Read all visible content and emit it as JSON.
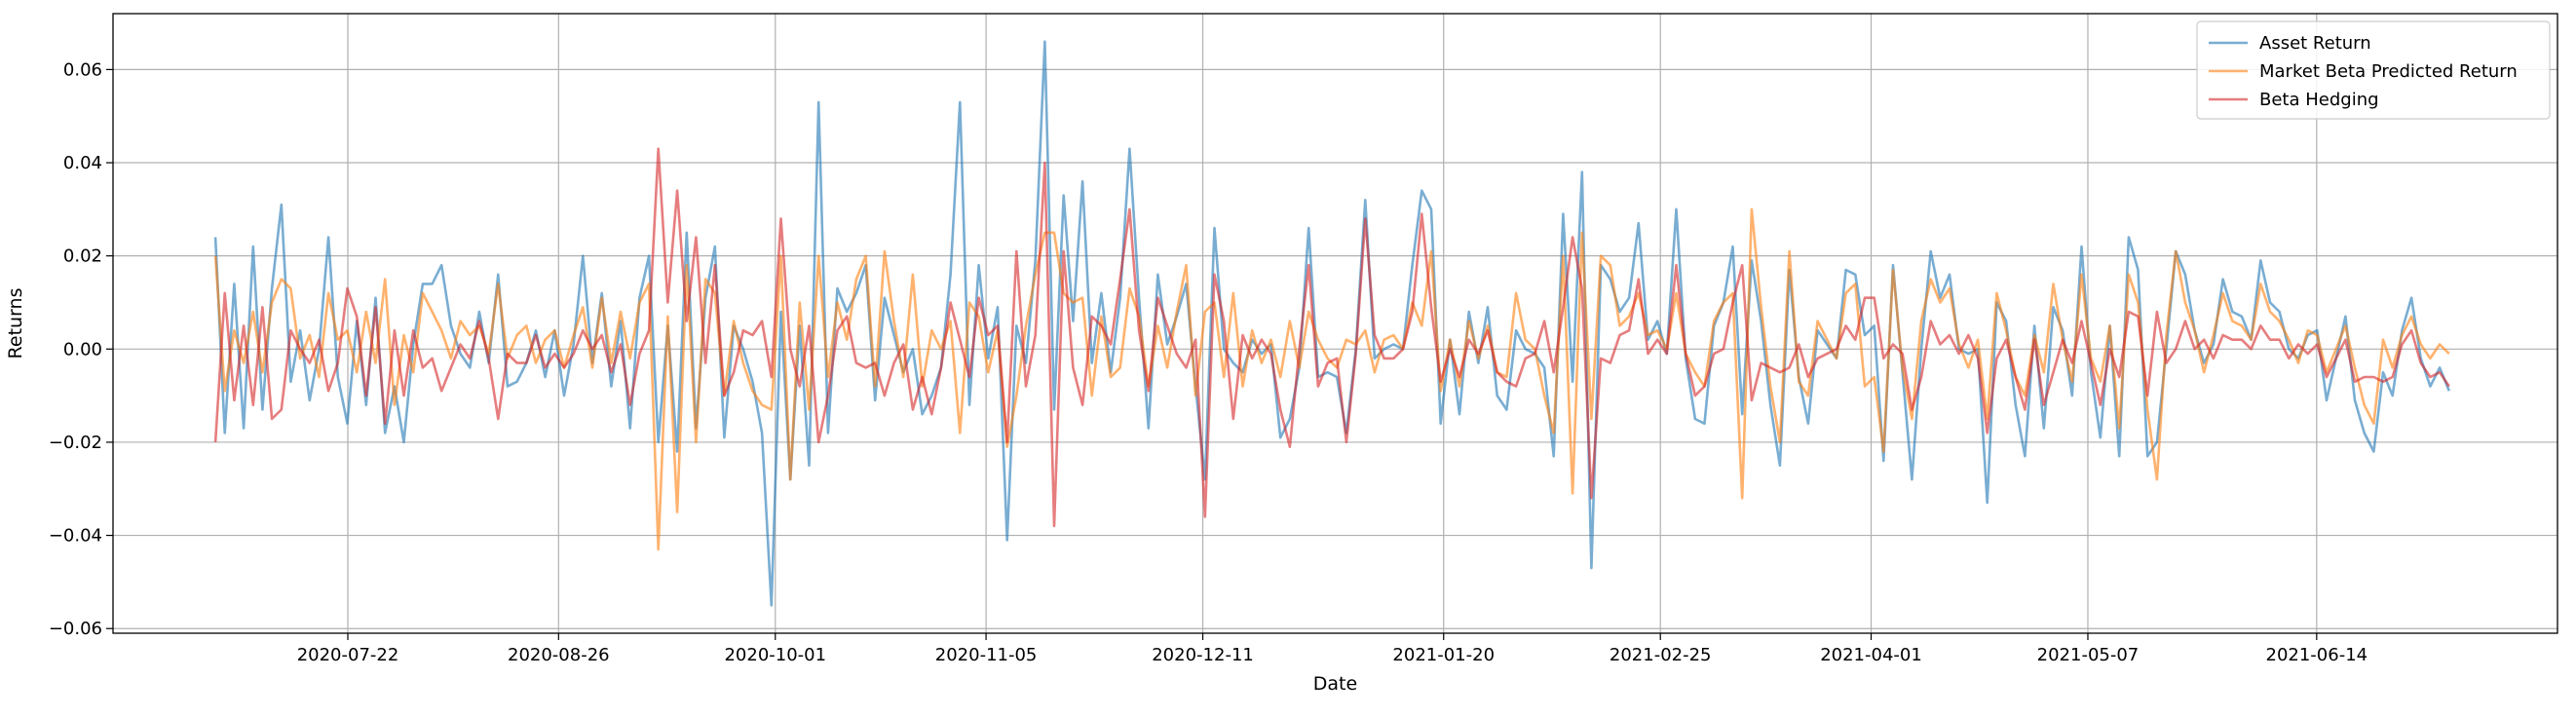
{
  "chart_data": {
    "type": "line",
    "title": "",
    "xlabel": "Date",
    "ylabel": "Returns",
    "ylim": [
      -0.061,
      0.072
    ],
    "xlim": [
      "2020-06-13",
      "2021-07-24"
    ],
    "grid": true,
    "legend_position": "top-right",
    "x_start": "2020-06-30",
    "x_end": "2021-07-06",
    "x_ticks": [
      "2020-07-22",
      "2020-08-26",
      "2020-10-01",
      "2020-11-05",
      "2020-12-11",
      "2021-01-20",
      "2021-02-25",
      "2021-04-01",
      "2021-05-07",
      "2021-06-14"
    ],
    "y_ticks": [
      {
        "value": -0.06,
        "label": "−0.06"
      },
      {
        "value": -0.04,
        "label": "−0.04"
      },
      {
        "value": -0.02,
        "label": "−0.02"
      },
      {
        "value": 0.0,
        "label": "0.00"
      },
      {
        "value": 0.02,
        "label": "0.02"
      },
      {
        "value": 0.04,
        "label": "0.04"
      },
      {
        "value": 0.06,
        "label": "0.06"
      }
    ],
    "series": [
      {
        "name": "Asset Return",
        "color": "#1f77b4",
        "values": [
          0.024,
          -0.018,
          0.014,
          -0.017,
          0.022,
          -0.013,
          0.013,
          0.031,
          -0.007,
          0.004,
          -0.011,
          0.0,
          0.024,
          -0.006,
          -0.016,
          0.006,
          -0.012,
          0.011,
          -0.018,
          -0.008,
          -0.02,
          0.001,
          0.014,
          0.014,
          0.018,
          0.005,
          -0.001,
          -0.004,
          0.008,
          -0.003,
          0.016,
          -0.008,
          -0.007,
          -0.003,
          0.004,
          -0.006,
          0.004,
          -0.01,
          0.001,
          0.02,
          -0.003,
          0.012,
          -0.008,
          0.006,
          -0.017,
          0.011,
          0.02,
          -0.02,
          0.005,
          -0.022,
          0.025,
          -0.017,
          0.011,
          0.022,
          -0.019,
          0.005,
          0.0,
          -0.007,
          -0.018,
          -0.055,
          0.008,
          -0.028,
          0.005,
          -0.025,
          0.053,
          -0.018,
          0.013,
          0.008,
          0.012,
          0.018,
          -0.011,
          0.011,
          0.003,
          -0.005,
          0.0,
          -0.014,
          -0.01,
          -0.004,
          0.016,
          0.053,
          -0.012,
          0.018,
          -0.002,
          0.009,
          -0.041,
          0.005,
          -0.003,
          0.019,
          0.066,
          -0.013,
          0.033,
          0.006,
          0.036,
          -0.003,
          0.012,
          -0.005,
          0.011,
          0.043,
          0.011,
          -0.017,
          0.016,
          0.001,
          0.007,
          0.014,
          -0.008,
          -0.028,
          0.026,
          0.0,
          -0.003,
          -0.005,
          0.002,
          -0.001,
          0.001,
          -0.019,
          -0.015,
          -0.004,
          0.026,
          -0.006,
          -0.005,
          -0.006,
          -0.018,
          0.0,
          0.032,
          -0.002,
          0.0,
          0.001,
          0.0,
          0.018,
          0.034,
          0.03,
          -0.016,
          0.002,
          -0.014,
          0.008,
          -0.003,
          0.009,
          -0.01,
          -0.013,
          0.004,
          0.0,
          -0.001,
          -0.004,
          -0.023,
          0.029,
          -0.007,
          0.038,
          -0.047,
          0.018,
          0.015,
          0.008,
          0.011,
          0.027,
          0.002,
          0.006,
          -0.001,
          0.03,
          -0.002,
          -0.015,
          -0.016,
          0.005,
          0.01,
          0.022,
          -0.014,
          0.019,
          0.006,
          -0.012,
          -0.025,
          0.017,
          -0.006,
          -0.016,
          0.004,
          0.001,
          -0.002,
          0.017,
          0.016,
          0.003,
          0.005,
          -0.024,
          0.018,
          -0.005,
          -0.028,
          0.0,
          0.021,
          0.011,
          0.016,
          0.0,
          -0.001,
          0.0,
          -0.033,
          0.01,
          0.006,
          -0.012,
          -0.023,
          0.005,
          -0.017,
          0.009,
          0.004,
          -0.01,
          0.022,
          -0.005,
          -0.019,
          0.005,
          -0.023,
          0.024,
          0.017,
          -0.023,
          -0.02,
          0.0,
          0.021,
          0.016,
          0.004,
          -0.003,
          0.001,
          0.015,
          0.008,
          0.007,
          0.002,
          0.019,
          0.01,
          0.008,
          0.0,
          -0.002,
          0.003,
          0.004,
          -0.011,
          -0.002,
          0.007,
          -0.011,
          -0.018,
          -0.022,
          -0.005,
          -0.01,
          0.004,
          0.011,
          -0.002,
          -0.008,
          -0.004,
          -0.009
        ]
      },
      {
        "name": "Market Beta Predicted Return",
        "color": "#ff7f0e",
        "values": [
          0.02,
          -0.009,
          0.004,
          -0.003,
          0.008,
          -0.005,
          0.01,
          0.015,
          0.013,
          -0.002,
          0.003,
          -0.006,
          0.012,
          0.002,
          0.004,
          -0.005,
          0.008,
          -0.003,
          0.015,
          -0.012,
          0.003,
          -0.005,
          0.012,
          0.008,
          0.004,
          -0.002,
          0.006,
          0.003,
          0.005,
          -0.001,
          0.014,
          -0.002,
          0.003,
          0.005,
          -0.003,
          0.002,
          0.004,
          -0.004,
          0.003,
          0.009,
          -0.004,
          0.011,
          -0.003,
          0.008,
          -0.002,
          0.01,
          0.014,
          -0.043,
          0.007,
          -0.035,
          0.018,
          -0.02,
          0.015,
          0.012,
          -0.01,
          0.006,
          -0.003,
          -0.009,
          -0.012,
          -0.013,
          0.02,
          -0.028,
          0.01,
          -0.013,
          0.02,
          -0.006,
          0.01,
          0.002,
          0.015,
          0.02,
          -0.008,
          0.021,
          0.006,
          -0.006,
          0.016,
          -0.008,
          0.004,
          0.0,
          0.006,
          -0.018,
          0.01,
          0.007,
          -0.005,
          0.004,
          -0.021,
          -0.01,
          0.005,
          0.016,
          0.025,
          0.025,
          0.012,
          0.01,
          0.011,
          -0.01,
          0.007,
          -0.006,
          -0.004,
          0.013,
          0.007,
          -0.008,
          0.005,
          -0.004,
          0.008,
          0.018,
          -0.01,
          0.008,
          0.01,
          -0.006,
          0.012,
          -0.008,
          0.004,
          -0.003,
          0.002,
          -0.006,
          0.006,
          -0.004,
          0.008,
          0.002,
          -0.002,
          -0.004,
          0.002,
          0.001,
          0.004,
          -0.005,
          0.002,
          0.003,
          0.0,
          0.01,
          0.005,
          0.021,
          -0.009,
          0.002,
          -0.008,
          0.006,
          -0.002,
          0.005,
          -0.005,
          -0.006,
          0.012,
          0.002,
          0.0,
          -0.01,
          -0.018,
          0.02,
          -0.031,
          0.025,
          -0.015,
          0.02,
          0.018,
          0.005,
          0.007,
          0.012,
          0.003,
          0.004,
          0.0,
          0.012,
          -0.001,
          -0.005,
          -0.008,
          0.006,
          0.01,
          0.012,
          -0.032,
          0.03,
          0.009,
          -0.008,
          -0.02,
          0.021,
          -0.007,
          -0.01,
          0.006,
          0.002,
          -0.002,
          0.012,
          0.014,
          -0.008,
          -0.006,
          -0.022,
          0.017,
          -0.004,
          -0.015,
          0.006,
          0.015,
          0.01,
          0.013,
          0.001,
          -0.004,
          0.002,
          -0.015,
          0.012,
          0.004,
          -0.006,
          -0.01,
          0.003,
          -0.005,
          0.014,
          0.002,
          -0.007,
          0.016,
          -0.002,
          -0.007,
          0.005,
          -0.017,
          0.016,
          0.01,
          -0.013,
          -0.028,
          0.003,
          0.021,
          0.01,
          0.004,
          -0.005,
          0.003,
          0.012,
          0.006,
          0.005,
          0.002,
          0.014,
          0.008,
          0.006,
          0.002,
          -0.003,
          0.004,
          0.003,
          -0.005,
          0.0,
          0.005,
          -0.004,
          -0.012,
          -0.016,
          0.002,
          -0.004,
          0.003,
          0.007,
          0.001,
          -0.002,
          0.001,
          -0.001
        ]
      },
      {
        "name": "Beta Hedging",
        "color": "#d62728",
        "values": [
          -0.02,
          0.012,
          -0.011,
          0.005,
          -0.012,
          0.009,
          -0.015,
          -0.013,
          0.004,
          0.0,
          -0.003,
          0.002,
          -0.009,
          -0.003,
          0.013,
          0.007,
          -0.01,
          0.009,
          -0.016,
          0.004,
          -0.01,
          0.004,
          -0.004,
          -0.002,
          -0.009,
          -0.004,
          0.001,
          -0.002,
          0.006,
          -0.002,
          -0.015,
          -0.001,
          -0.003,
          -0.003,
          0.003,
          -0.004,
          -0.001,
          -0.004,
          -0.001,
          0.004,
          0.0,
          0.003,
          -0.005,
          0.001,
          -0.012,
          -0.001,
          0.004,
          0.043,
          0.01,
          0.034,
          0.006,
          0.024,
          -0.003,
          0.018,
          -0.01,
          -0.005,
          0.004,
          0.003,
          0.006,
          -0.006,
          0.028,
          0.0,
          -0.008,
          0.005,
          -0.02,
          -0.01,
          0.004,
          0.007,
          -0.003,
          -0.004,
          -0.003,
          -0.01,
          -0.003,
          0.001,
          -0.013,
          -0.006,
          -0.014,
          -0.004,
          0.01,
          0.002,
          -0.006,
          0.011,
          0.003,
          0.005,
          -0.02,
          0.021,
          -0.008,
          0.003,
          0.04,
          -0.038,
          0.021,
          -0.004,
          -0.012,
          0.007,
          0.005,
          0.001,
          0.015,
          0.03,
          0.004,
          -0.009,
          0.011,
          0.005,
          -0.001,
          -0.004,
          0.002,
          -0.036,
          0.016,
          0.006,
          -0.015,
          0.003,
          -0.002,
          0.002,
          -0.001,
          -0.013,
          -0.021,
          0.0,
          0.018,
          -0.008,
          -0.003,
          -0.002,
          -0.02,
          -0.001,
          0.028,
          0.003,
          -0.002,
          -0.002,
          0.0,
          0.008,
          0.029,
          0.009,
          -0.007,
          0.0,
          -0.006,
          0.002,
          -0.001,
          0.004,
          -0.005,
          -0.007,
          -0.008,
          -0.002,
          -0.001,
          0.006,
          -0.005,
          0.009,
          0.024,
          0.013,
          -0.032,
          -0.002,
          -0.003,
          0.003,
          0.004,
          0.015,
          -0.001,
          0.002,
          -0.001,
          0.018,
          -0.001,
          -0.01,
          -0.008,
          -0.001,
          0.0,
          0.01,
          0.018,
          -0.011,
          -0.003,
          -0.004,
          -0.005,
          -0.004,
          0.001,
          -0.006,
          -0.002,
          -0.001,
          0.0,
          0.005,
          0.002,
          0.011,
          0.011,
          -0.002,
          0.001,
          -0.001,
          -0.013,
          -0.006,
          0.006,
          0.001,
          0.003,
          -0.001,
          0.003,
          -0.002,
          -0.018,
          -0.002,
          0.002,
          -0.006,
          -0.013,
          0.002,
          -0.012,
          -0.005,
          0.002,
          -0.003,
          0.006,
          -0.003,
          -0.012,
          0.0,
          -0.006,
          0.008,
          0.007,
          -0.01,
          0.008,
          -0.003,
          0.0,
          0.006,
          0.0,
          0.002,
          -0.002,
          0.003,
          0.002,
          0.002,
          0.0,
          0.005,
          0.002,
          0.002,
          -0.002,
          0.001,
          -0.001,
          0.001,
          -0.006,
          -0.002,
          0.002,
          -0.007,
          -0.006,
          -0.006,
          -0.007,
          -0.006,
          0.001,
          0.004,
          -0.003,
          -0.006,
          -0.005,
          -0.008
        ]
      }
    ]
  }
}
